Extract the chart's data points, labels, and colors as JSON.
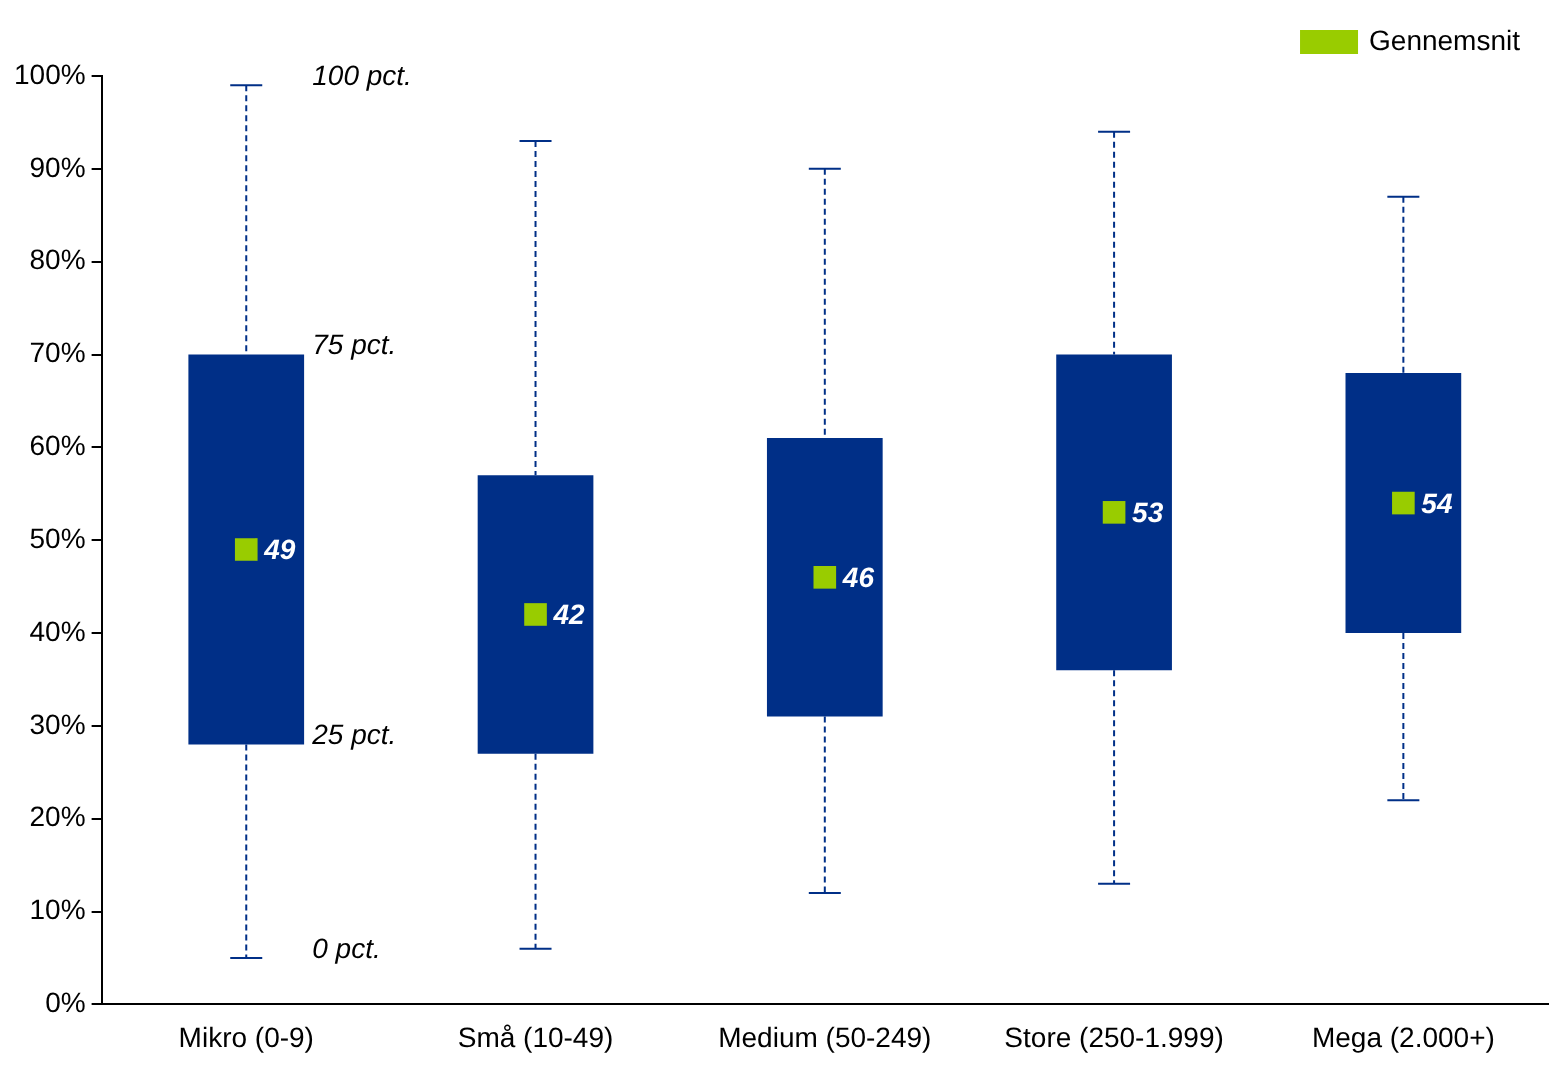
{
  "chart_data": {
    "type": "box",
    "categories": [
      "Mikro (0-9)",
      "Små (10-49)",
      "Medium (50-249)",
      "Store (250-1.999)",
      "Mega (2.000+)"
    ],
    "color": "#002f87",
    "boxes": [
      {
        "low": 5,
        "q1": 28,
        "q3": 70,
        "high": 99
      },
      {
        "low": 6,
        "q1": 27,
        "q3": 57,
        "high": 93
      },
      {
        "low": 12,
        "q1": 31,
        "q3": 61,
        "high": 90
      },
      {
        "low": 13,
        "q1": 36,
        "q3": 70,
        "high": 94
      },
      {
        "low": 22,
        "q1": 40,
        "q3": 68,
        "high": 87
      }
    ],
    "series": [
      {
        "name": "Gennemsnit",
        "type": "scatter",
        "color": "#99cc00",
        "x": [
          "Mikro (0-9)",
          "Små (10-49)",
          "Medium (50-249)",
          "Store (250-1.999)",
          "Mega (2.000+)"
        ],
        "values": [
          49,
          42,
          46,
          53,
          54
        ]
      }
    ],
    "data_labels": true,
    "ylim": [
      0,
      100
    ],
    "yticks": [
      {
        "value": 0,
        "label": "0%"
      },
      {
        "value": 10,
        "label": "10%"
      },
      {
        "value": 20,
        "label": "20%"
      },
      {
        "value": 30,
        "label": "30%"
      },
      {
        "value": 40,
        "label": "40%"
      },
      {
        "value": 50,
        "label": "50%"
      },
      {
        "value": 60,
        "label": "60%"
      },
      {
        "value": 70,
        "label": "70%"
      },
      {
        "value": 80,
        "label": "80%"
      },
      {
        "value": 90,
        "label": "90%"
      },
      {
        "value": 100,
        "label": "100%"
      }
    ],
    "grid": false,
    "legend": "top right",
    "annotations": [
      {
        "text": "100 pct.",
        "x": "Mikro (0-9)",
        "y": 99
      },
      {
        "text": "75 pct.",
        "x": "Mikro (0-9)",
        "y": 70
      },
      {
        "text": "25 pct.",
        "x": "Mikro (0-9)",
        "y": 28
      },
      {
        "text": "0 pct.",
        "x": "Mikro (0-9)",
        "y": 5
      }
    ]
  }
}
